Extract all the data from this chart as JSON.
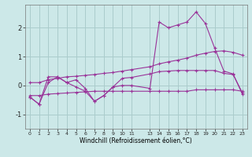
{
  "background_color": "#cce8e8",
  "grid_color": "#aacccc",
  "line_color": "#993399",
  "xlabel": "Windchill (Refroidissement éolien,°C)",
  "xlim": [
    -0.5,
    23.5
  ],
  "ylim": [
    -1.5,
    2.8
  ],
  "yticks": [
    -1,
    0,
    1,
    2
  ],
  "xticks": [
    0,
    1,
    2,
    3,
    4,
    5,
    6,
    7,
    8,
    9,
    10,
    11,
    13,
    14,
    15,
    16,
    17,
    18,
    19,
    20,
    21,
    22,
    23
  ],
  "x": [
    0,
    1,
    2,
    3,
    4,
    5,
    6,
    7,
    8,
    9,
    10,
    11,
    13,
    14,
    15,
    16,
    17,
    18,
    19,
    20,
    21,
    22,
    23
  ],
  "line1": [
    -0.4,
    -0.65,
    0.3,
    0.3,
    0.1,
    0.2,
    -0.1,
    -0.55,
    -0.35,
    -0.05,
    0.0,
    0.0,
    -0.1,
    2.2,
    2.0,
    2.1,
    2.2,
    2.55,
    2.15,
    1.3,
    0.5,
    0.4,
    -0.3
  ],
  "line2": [
    0.1,
    0.1,
    0.2,
    0.25,
    0.3,
    0.32,
    0.35,
    0.38,
    0.42,
    0.45,
    0.5,
    0.55,
    0.65,
    0.75,
    0.82,
    0.88,
    0.95,
    1.05,
    1.12,
    1.18,
    1.2,
    1.15,
    1.05
  ],
  "line3": [
    -0.35,
    -0.35,
    -0.3,
    -0.28,
    -0.26,
    -0.24,
    -0.22,
    -0.2,
    -0.2,
    -0.2,
    -0.2,
    -0.2,
    -0.2,
    -0.2,
    -0.2,
    -0.2,
    -0.2,
    -0.15,
    -0.15,
    -0.15,
    -0.15,
    -0.15,
    -0.2
  ],
  "line4": [
    -0.4,
    -0.65,
    0.1,
    0.3,
    0.1,
    -0.05,
    -0.2,
    -0.55,
    -0.35,
    -0.05,
    0.25,
    0.28,
    0.4,
    0.48,
    0.5,
    0.52,
    0.52,
    0.52,
    0.52,
    0.52,
    0.42,
    0.38,
    -0.25
  ]
}
